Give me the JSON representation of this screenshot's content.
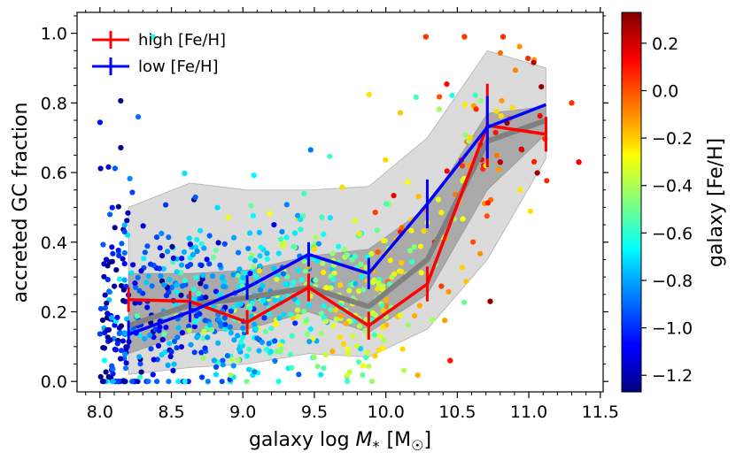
{
  "chart_data": {
    "type": "scatter",
    "xlabel_main": "galaxy log ",
    "xlabel_var": "M",
    "xlabel_sub": "*",
    "xlabel_unit": "[M",
    "xlabel_sun": "☉",
    "xlabel_close": "]",
    "ylabel": "accreted GC fraction",
    "colorbar_label": "galaxy [Fe/H]",
    "xlim": [
      7.84,
      11.52
    ],
    "ylim": [
      -0.03,
      1.06
    ],
    "color_lim": [
      -1.27,
      0.33
    ],
    "x_ticks": [
      8.0,
      8.5,
      9.0,
      9.5,
      10.0,
      10.5,
      11.0,
      11.5
    ],
    "x_tick_labels": [
      "8.0",
      "8.5",
      "9.0",
      "9.5",
      "10.0",
      "10.5",
      "11.0",
      "11.5"
    ],
    "y_ticks": [
      0.0,
      0.2,
      0.4,
      0.6,
      0.8,
      1.0
    ],
    "y_tick_labels": [
      "0.0",
      "0.2",
      "0.4",
      "0.6",
      "0.8",
      "1.0"
    ],
    "color_ticks": [
      -1.2,
      -1.0,
      -0.8,
      -0.6,
      -0.4,
      -0.2,
      0.0,
      0.2
    ],
    "color_tick_labels": [
      "−1.2",
      "−1.0",
      "−0.8",
      "−0.6",
      "−0.4",
      "−0.2",
      "0.0",
      "0.2"
    ],
    "legend": [
      {
        "label": "high [Fe/H]",
        "color": "#ff0000"
      },
      {
        "label": "low [Fe/H]",
        "color": "#0000ff"
      }
    ],
    "series": [
      {
        "name": "high [Fe/H]",
        "color": "#ff0000",
        "x": [
          8.2,
          8.63,
          9.03,
          9.46,
          9.88,
          10.29,
          10.71,
          11.12
        ],
        "y": [
          0.235,
          0.23,
          0.17,
          0.27,
          0.16,
          0.28,
          0.735,
          0.71
        ],
        "err": [
          0.035,
          0.03,
          0.035,
          0.04,
          0.04,
          0.05,
          0.12,
          0.05
        ]
      },
      {
        "name": "low [Fe/H]",
        "color": "#0000ff",
        "x": [
          8.2,
          8.63,
          9.03,
          9.46,
          9.88,
          10.29,
          10.71,
          11.12
        ],
        "y": [
          0.135,
          0.2,
          0.27,
          0.365,
          0.31,
          0.51,
          0.73,
          0.795
        ],
        "err": [
          0.04,
          0.03,
          0.035,
          0.035,
          0.045,
          0.07,
          0.09,
          0.0
        ]
      },
      {
        "name": "median (all)",
        "color": "#808080",
        "x": [
          8.2,
          8.63,
          9.03,
          9.46,
          9.88,
          10.29,
          10.71,
          11.12
        ],
        "y": [
          0.16,
          0.22,
          0.24,
          0.27,
          0.215,
          0.35,
          0.69,
          0.75
        ]
      }
    ],
    "bands": [
      {
        "name": "inner band",
        "x": [
          8.2,
          8.63,
          9.03,
          9.46,
          9.88,
          10.29,
          10.71,
          11.12
        ],
        "lower": [
          0.08,
          0.14,
          0.15,
          0.2,
          0.14,
          0.25,
          0.55,
          0.71
        ],
        "upper": [
          0.31,
          0.31,
          0.32,
          0.36,
          0.38,
          0.5,
          0.77,
          0.79
        ]
      },
      {
        "name": "outer band",
        "x": [
          8.2,
          8.63,
          9.03,
          9.46,
          9.88,
          10.29,
          10.71,
          11.12
        ],
        "lower": [
          0.02,
          0.04,
          0.05,
          0.08,
          0.07,
          0.15,
          0.35,
          0.64
        ],
        "upper": [
          0.5,
          0.57,
          0.55,
          0.55,
          0.56,
          0.7,
          0.95,
          0.9
        ]
      }
    ],
    "points": {
      "count": 850,
      "description_x_range": [
        8.0,
        11.35
      ],
      "description_y_range": [
        0.0,
        1.0
      ],
      "highlighted": [
        {
          "x": 10.28,
          "y": 0.99,
          "feh": 0.05
        },
        {
          "x": 10.55,
          "y": 0.99,
          "feh": 0.05
        },
        {
          "x": 10.82,
          "y": 0.99,
          "feh": 0.05
        },
        {
          "x": 11.3,
          "y": 0.8,
          "feh": 0.05
        },
        {
          "x": 11.35,
          "y": 0.63,
          "feh": 0.15
        },
        {
          "x": 10.73,
          "y": 0.23,
          "feh": 0.3
        },
        {
          "x": 10.8,
          "y": 0.63,
          "feh": 0.25
        },
        {
          "x": 10.45,
          "y": 0.06,
          "feh": 0.1
        },
        {
          "x": 8.37,
          "y": 0.99,
          "feh": -0.6
        }
      ]
    }
  }
}
